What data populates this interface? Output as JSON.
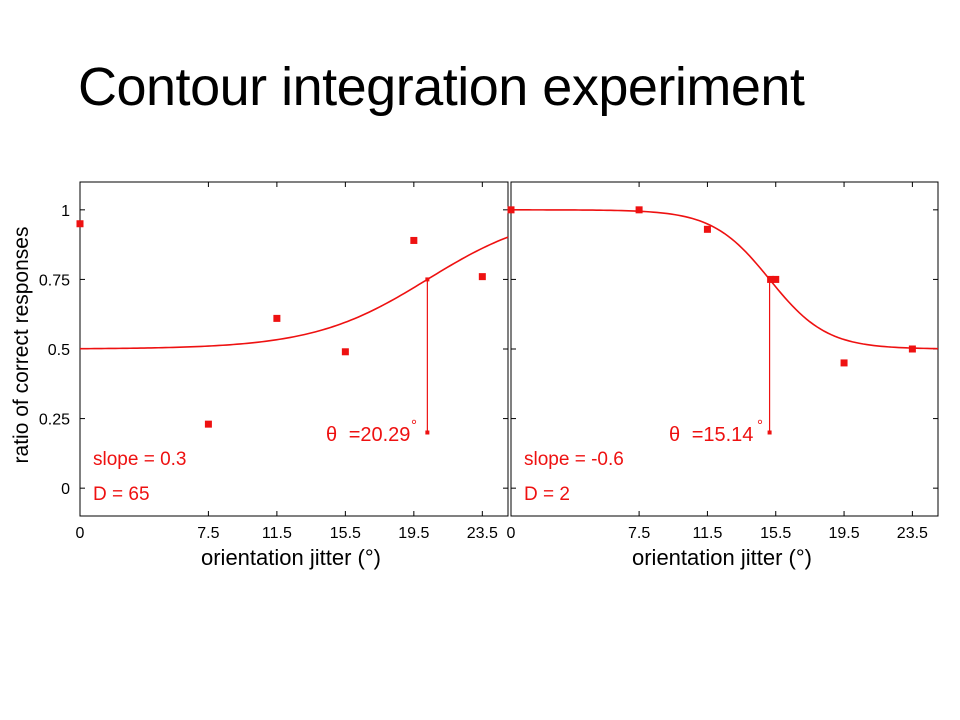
{
  "slide": {
    "title": "Contour integration experiment"
  },
  "colors": {
    "data": "#ee1111",
    "axis": "#000000",
    "background": "#ffffff"
  },
  "shared_axes": {
    "ylabel": "ratio of correct responses",
    "xlabel": "orientation jitter (°)"
  },
  "chart_data": [
    {
      "type": "scatter",
      "panel": "left",
      "xlabel": "orientation jitter (°)",
      "ylabel": "ratio of correct responses",
      "xlim": [
        0,
        25.0
      ],
      "ylim": [
        -0.1,
        1.1
      ],
      "x_ticks": [
        0,
        7.5,
        11.5,
        15.5,
        19.5,
        23.5
      ],
      "x_tick_labels": [
        "0",
        "7.5",
        "11.5",
        "15.5",
        "19.5",
        "23.5"
      ],
      "y_ticks": [
        0,
        0.25,
        0.5,
        0.75,
        1
      ],
      "y_tick_labels": [
        "0",
        "0.25",
        "0.5",
        "0.75",
        "1"
      ],
      "series": [
        {
          "kind": "points",
          "x": [
            0,
            7.5,
            11.5,
            15.5,
            19.5,
            23.5
          ],
          "y": [
            0.95,
            0.23,
            0.61,
            0.49,
            0.89,
            0.76
          ]
        },
        {
          "kind": "fit-curve",
          "model": "psychometric",
          "lower": 0.5,
          "upper": 1.0,
          "threshold": 20.29,
          "slope": 0.3,
          "x_range": [
            0,
            25.0
          ]
        }
      ],
      "threshold_marker": {
        "x": 20.29,
        "y_top": 0.75,
        "y_bottom": 0.2
      },
      "annotations": {
        "threshold_symbol": "θ",
        "threshold_value": "=20.29",
        "degree_mark": "°",
        "slope_text": "slope = 0.3",
        "d_text": "D = 65"
      },
      "grid": false
    },
    {
      "type": "scatter",
      "panel": "right",
      "xlabel": "orientation jitter (°)",
      "xlim": [
        0,
        25.0
      ],
      "ylim": [
        -0.1,
        1.1
      ],
      "x_ticks": [
        0,
        7.5,
        11.5,
        15.5,
        19.5,
        23.5
      ],
      "x_tick_labels": [
        "0",
        "7.5",
        "11.5",
        "15.5",
        "19.5",
        "23.5"
      ],
      "y_ticks": [
        0,
        0.25,
        0.5,
        0.75,
        1
      ],
      "series": [
        {
          "kind": "points",
          "x": [
            0,
            7.5,
            11.5,
            15.2,
            15.5,
            19.5,
            23.5
          ],
          "y": [
            1.0,
            1.0,
            0.93,
            0.75,
            0.75,
            0.45,
            0.5
          ]
        },
        {
          "kind": "fit-curve",
          "model": "psychometric",
          "lower": 0.5,
          "upper": 1.0,
          "threshold": 15.14,
          "slope": -0.6,
          "x_range": [
            0,
            25.0
          ]
        }
      ],
      "threshold_marker": {
        "x": 15.14,
        "y_top": 0.75,
        "y_bottom": 0.2
      },
      "annotations": {
        "threshold_symbol": "θ",
        "threshold_value": "=15.14",
        "degree_mark": "°",
        "slope_text": "slope = -0.6",
        "d_text": "D = 2"
      },
      "grid": false
    }
  ]
}
